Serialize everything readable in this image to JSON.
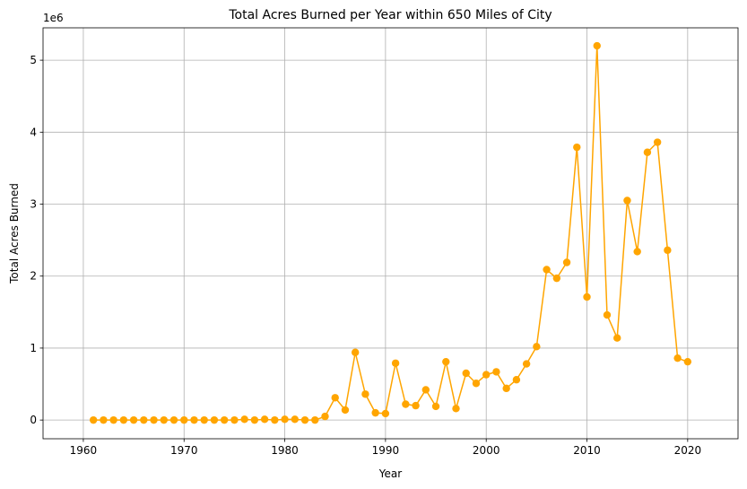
{
  "chart_data": {
    "type": "line",
    "title": "Total Acres Burned per Year within 650 Miles of City",
    "xlabel": "Year",
    "ylabel": "Total Acres Burned",
    "y_offset_label": "1e6",
    "xlim": [
      1956,
      2025
    ],
    "ylim": [
      -0.26,
      5.45
    ],
    "y_scale_factor": 1000000,
    "x_ticks": [
      1960,
      1970,
      1980,
      1990,
      2000,
      2010,
      2020
    ],
    "x_tick_labels": [
      "1960",
      "1970",
      "1980",
      "1990",
      "2000",
      "2010",
      "2020"
    ],
    "y_ticks": [
      0,
      1,
      2,
      3,
      4,
      5
    ],
    "y_tick_labels": [
      "0",
      "1",
      "2",
      "3",
      "4",
      "5"
    ],
    "grid": true,
    "series": [
      {
        "color": "#ffa500",
        "marker": "circle",
        "x": [
          1961,
          1962,
          1963,
          1964,
          1965,
          1966,
          1967,
          1968,
          1969,
          1970,
          1971,
          1972,
          1973,
          1974,
          1975,
          1976,
          1977,
          1978,
          1979,
          1980,
          1981,
          1982,
          1983,
          1984,
          1985,
          1986,
          1987,
          1988,
          1989,
          1990,
          1991,
          1992,
          1993,
          1994,
          1995,
          1996,
          1997,
          1998,
          1999,
          2000,
          2001,
          2002,
          2003,
          2004,
          2005,
          2006,
          2007,
          2008,
          2009,
          2010,
          2011,
          2012,
          2013,
          2014,
          2015,
          2016,
          2017,
          2018,
          2019,
          2020
        ],
        "y": [
          0.0,
          0.0,
          0.0,
          0.0,
          0.0,
          0.0,
          0.0,
          0.0,
          0.0,
          0.0,
          0.0,
          0.0,
          0.0,
          0.0,
          0.0,
          0.01,
          0.0,
          0.01,
          0.0,
          0.01,
          0.01,
          0.0,
          0.0,
          0.05,
          0.31,
          0.14,
          0.94,
          0.36,
          0.1,
          0.09,
          0.79,
          0.22,
          0.2,
          0.42,
          0.19,
          0.81,
          0.16,
          0.65,
          0.51,
          0.63,
          0.67,
          0.44,
          0.56,
          0.78,
          1.02,
          2.09,
          1.97,
          2.19,
          3.79,
          1.71,
          5.2,
          1.46,
          1.14,
          3.05,
          2.34,
          3.72,
          3.86,
          2.36,
          0.86,
          0.81
        ]
      }
    ]
  }
}
